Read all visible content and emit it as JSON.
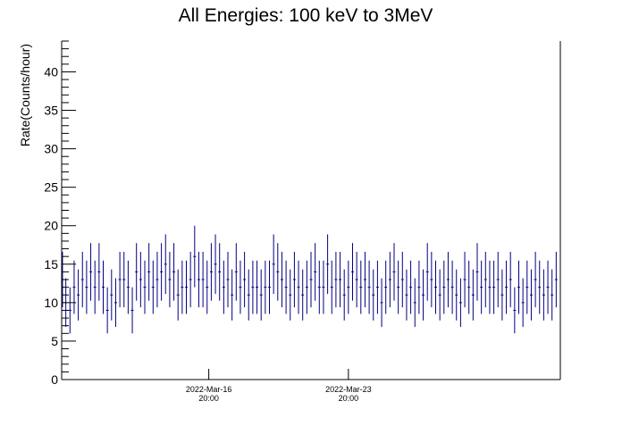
{
  "chart_data": {
    "type": "scatter",
    "title": "All Energies:  100 keV to 3MeV",
    "xlabel": "",
    "ylabel": "Rate(Counts/hour)",
    "ylim": [
      0,
      44
    ],
    "yticks": [
      0,
      5,
      10,
      15,
      20,
      25,
      30,
      35,
      40
    ],
    "xticks": [
      {
        "date": "2022-Mar-16",
        "time": "20:00",
        "hours": 177
      },
      {
        "date": "2022-Mar-23",
        "time": "20:00",
        "hours": 345
      }
    ],
    "grid": false,
    "error_bars": "sqrt(N)",
    "series_color": "#000080",
    "points": [
      {
        "x": 1,
        "y": 13
      },
      {
        "x": 5,
        "y": 10
      },
      {
        "x": 10,
        "y": 9
      },
      {
        "x": 15,
        "y": 12
      },
      {
        "x": 20,
        "y": 11
      },
      {
        "x": 25,
        "y": 13
      },
      {
        "x": 30,
        "y": 12
      },
      {
        "x": 35,
        "y": 14
      },
      {
        "x": 40,
        "y": 12
      },
      {
        "x": 45,
        "y": 14
      },
      {
        "x": 50,
        "y": 12
      },
      {
        "x": 55,
        "y": 9
      },
      {
        "x": 60,
        "y": 11
      },
      {
        "x": 65,
        "y": 10
      },
      {
        "x": 70,
        "y": 13
      },
      {
        "x": 75,
        "y": 13
      },
      {
        "x": 80,
        "y": 12
      },
      {
        "x": 85,
        "y": 9
      },
      {
        "x": 90,
        "y": 14
      },
      {
        "x": 95,
        "y": 13
      },
      {
        "x": 100,
        "y": 12
      },
      {
        "x": 105,
        "y": 14
      },
      {
        "x": 110,
        "y": 12
      },
      {
        "x": 115,
        "y": 13
      },
      {
        "x": 120,
        "y": 14
      },
      {
        "x": 125,
        "y": 15
      },
      {
        "x": 130,
        "y": 13
      },
      {
        "x": 135,
        "y": 14
      },
      {
        "x": 140,
        "y": 11
      },
      {
        "x": 145,
        "y": 12
      },
      {
        "x": 150,
        "y": 12
      },
      {
        "x": 155,
        "y": 13
      },
      {
        "x": 160,
        "y": 16
      },
      {
        "x": 165,
        "y": 13
      },
      {
        "x": 170,
        "y": 13
      },
      {
        "x": 175,
        "y": 12
      },
      {
        "x": 180,
        "y": 14
      },
      {
        "x": 185,
        "y": 15
      },
      {
        "x": 190,
        "y": 14
      },
      {
        "x": 195,
        "y": 12
      },
      {
        "x": 200,
        "y": 13
      },
      {
        "x": 205,
        "y": 11
      },
      {
        "x": 210,
        "y": 14
      },
      {
        "x": 215,
        "y": 12
      },
      {
        "x": 220,
        "y": 13
      },
      {
        "x": 225,
        "y": 11
      },
      {
        "x": 230,
        "y": 12
      },
      {
        "x": 235,
        "y": 12
      },
      {
        "x": 240,
        "y": 11
      },
      {
        "x": 245,
        "y": 12
      },
      {
        "x": 250,
        "y": 12
      },
      {
        "x": 255,
        "y": 15
      },
      {
        "x": 260,
        "y": 14
      },
      {
        "x": 265,
        "y": 13
      },
      {
        "x": 270,
        "y": 12
      },
      {
        "x": 275,
        "y": 11
      },
      {
        "x": 280,
        "y": 13
      },
      {
        "x": 285,
        "y": 12
      },
      {
        "x": 290,
        "y": 11
      },
      {
        "x": 295,
        "y": 12
      },
      {
        "x": 300,
        "y": 13
      },
      {
        "x": 305,
        "y": 14
      },
      {
        "x": 310,
        "y": 12
      },
      {
        "x": 315,
        "y": 12
      },
      {
        "x": 320,
        "y": 15
      },
      {
        "x": 325,
        "y": 12
      },
      {
        "x": 330,
        "y": 13
      },
      {
        "x": 335,
        "y": 13
      },
      {
        "x": 340,
        "y": 11
      },
      {
        "x": 345,
        "y": 12
      },
      {
        "x": 350,
        "y": 14
      },
      {
        "x": 355,
        "y": 13
      },
      {
        "x": 360,
        "y": 12
      },
      {
        "x": 365,
        "y": 13
      },
      {
        "x": 370,
        "y": 12
      },
      {
        "x": 375,
        "y": 11
      },
      {
        "x": 380,
        "y": 12
      },
      {
        "x": 385,
        "y": 10
      },
      {
        "x": 390,
        "y": 12
      },
      {
        "x": 395,
        "y": 13
      },
      {
        "x": 400,
        "y": 14
      },
      {
        "x": 405,
        "y": 12
      },
      {
        "x": 410,
        "y": 13
      },
      {
        "x": 415,
        "y": 11
      },
      {
        "x": 420,
        "y": 12
      },
      {
        "x": 425,
        "y": 10
      },
      {
        "x": 430,
        "y": 12
      },
      {
        "x": 435,
        "y": 11
      },
      {
        "x": 440,
        "y": 14
      },
      {
        "x": 445,
        "y": 13
      },
      {
        "x": 450,
        "y": 12
      },
      {
        "x": 455,
        "y": 11
      },
      {
        "x": 460,
        "y": 12
      },
      {
        "x": 465,
        "y": 13
      },
      {
        "x": 470,
        "y": 12
      },
      {
        "x": 475,
        "y": 11
      },
      {
        "x": 480,
        "y": 10
      },
      {
        "x": 485,
        "y": 13
      },
      {
        "x": 490,
        "y": 12
      },
      {
        "x": 495,
        "y": 11
      },
      {
        "x": 500,
        "y": 14
      },
      {
        "x": 505,
        "y": 12
      },
      {
        "x": 510,
        "y": 13
      },
      {
        "x": 515,
        "y": 12
      },
      {
        "x": 520,
        "y": 12
      },
      {
        "x": 525,
        "y": 13
      },
      {
        "x": 530,
        "y": 11
      },
      {
        "x": 535,
        "y": 12
      },
      {
        "x": 540,
        "y": 13
      },
      {
        "x": 545,
        "y": 9
      },
      {
        "x": 550,
        "y": 12
      },
      {
        "x": 555,
        "y": 10
      },
      {
        "x": 560,
        "y": 12
      },
      {
        "x": 565,
        "y": 11
      },
      {
        "x": 570,
        "y": 13
      },
      {
        "x": 575,
        "y": 12
      },
      {
        "x": 580,
        "y": 11
      },
      {
        "x": 585,
        "y": 12
      },
      {
        "x": 590,
        "y": 11
      },
      {
        "x": 595,
        "y": 13
      }
    ]
  }
}
